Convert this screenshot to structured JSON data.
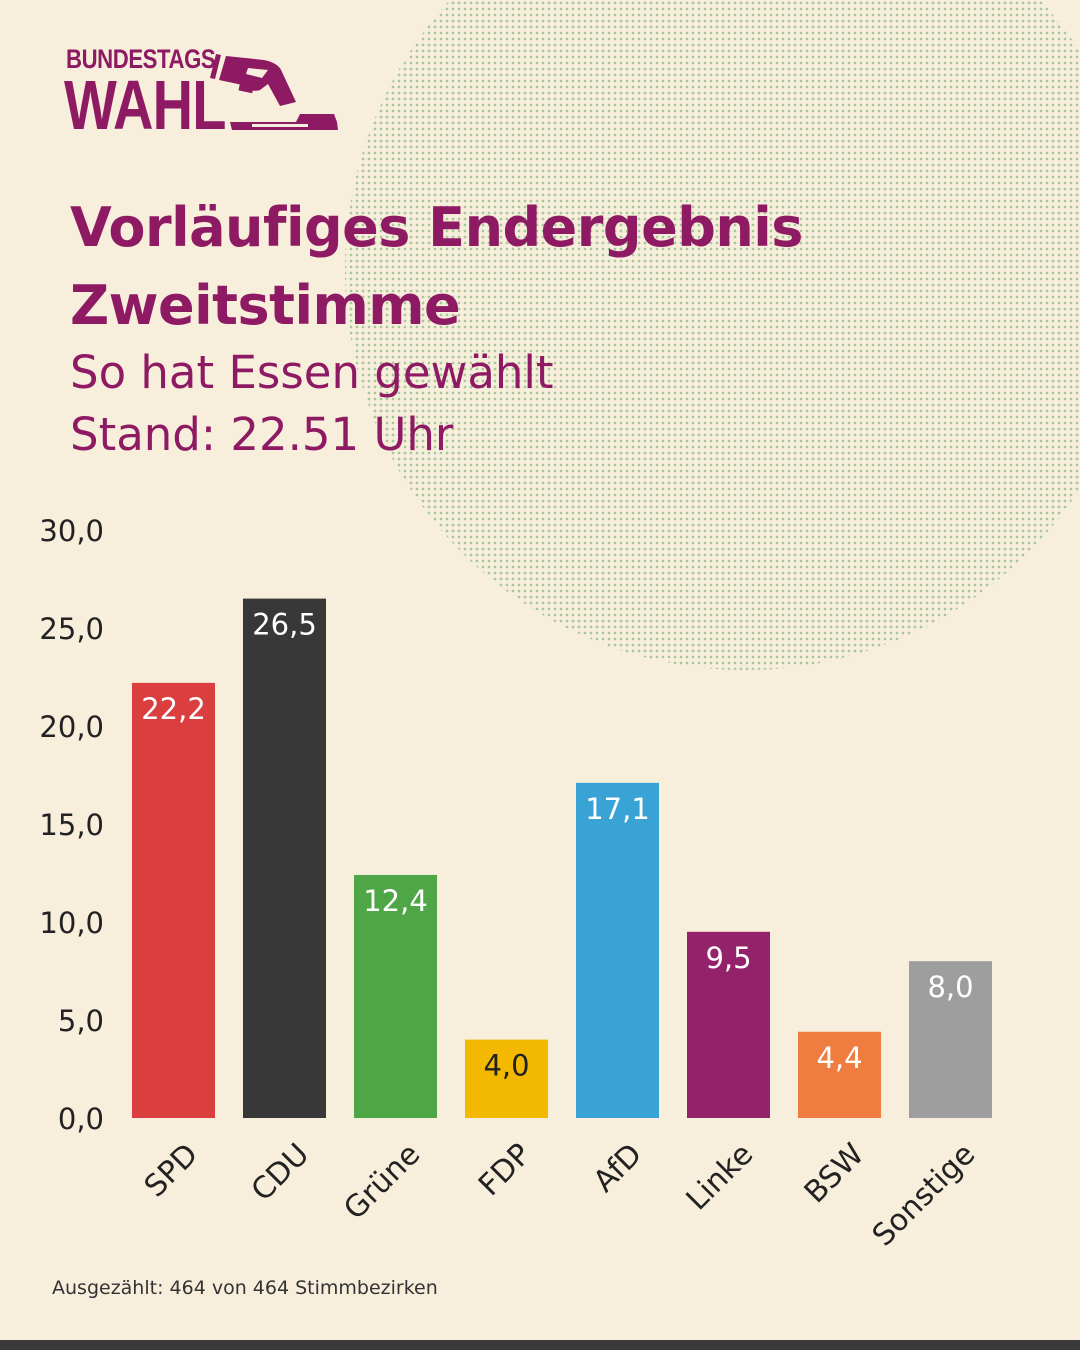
{
  "logo": {
    "line1": "BUNDESTAGS",
    "line2": "WAHL"
  },
  "header": {
    "title_line1": "Vorläufiges Endergebnis",
    "title_line2": "Zweitstimme",
    "subtitle": "So hat Essen gewählt",
    "stand": "Stand: 22.51 Uhr"
  },
  "footnote": "Ausgezählt: 464 von 464 Stimmbezirken",
  "colors": {
    "accent": "#8e1a63",
    "background": "#f8eedc",
    "dots": "#a6c89a",
    "footer_bar": "#3a3a3a"
  },
  "chart_data": {
    "type": "bar",
    "title": "Vorläufiges Endergebnis Zweitstimme",
    "xlabel": "",
    "ylabel": "",
    "ylim": [
      0,
      30
    ],
    "yticks": [
      "0,0",
      "5,0",
      "10,0",
      "15,0",
      "20,0",
      "25,0",
      "30,0"
    ],
    "ytick_values": [
      0,
      5,
      10,
      15,
      20,
      25,
      30
    ],
    "grid": false,
    "categories": [
      "SPD",
      "CDU",
      "Grüne",
      "FDP",
      "AfD",
      "Linke",
      "BSW",
      "Sonstige"
    ],
    "values": [
      22.2,
      26.5,
      12.4,
      4.0,
      17.1,
      9.5,
      4.4,
      8.0
    ],
    "labels": [
      "22,2",
      "26,5",
      "12,4",
      "4,0",
      "17,1",
      "9,5",
      "4,4",
      "8,0"
    ],
    "bar_colors": [
      "#db3e3e",
      "#383838",
      "#4ea646",
      "#f2b900",
      "#3aa3d6",
      "#93226a",
      "#ef7d3f",
      "#9e9e9e"
    ],
    "label_colors": [
      "#ffffff",
      "#ffffff",
      "#ffffff",
      "#222222",
      "#ffffff",
      "#ffffff",
      "#ffffff",
      "#ffffff"
    ]
  }
}
